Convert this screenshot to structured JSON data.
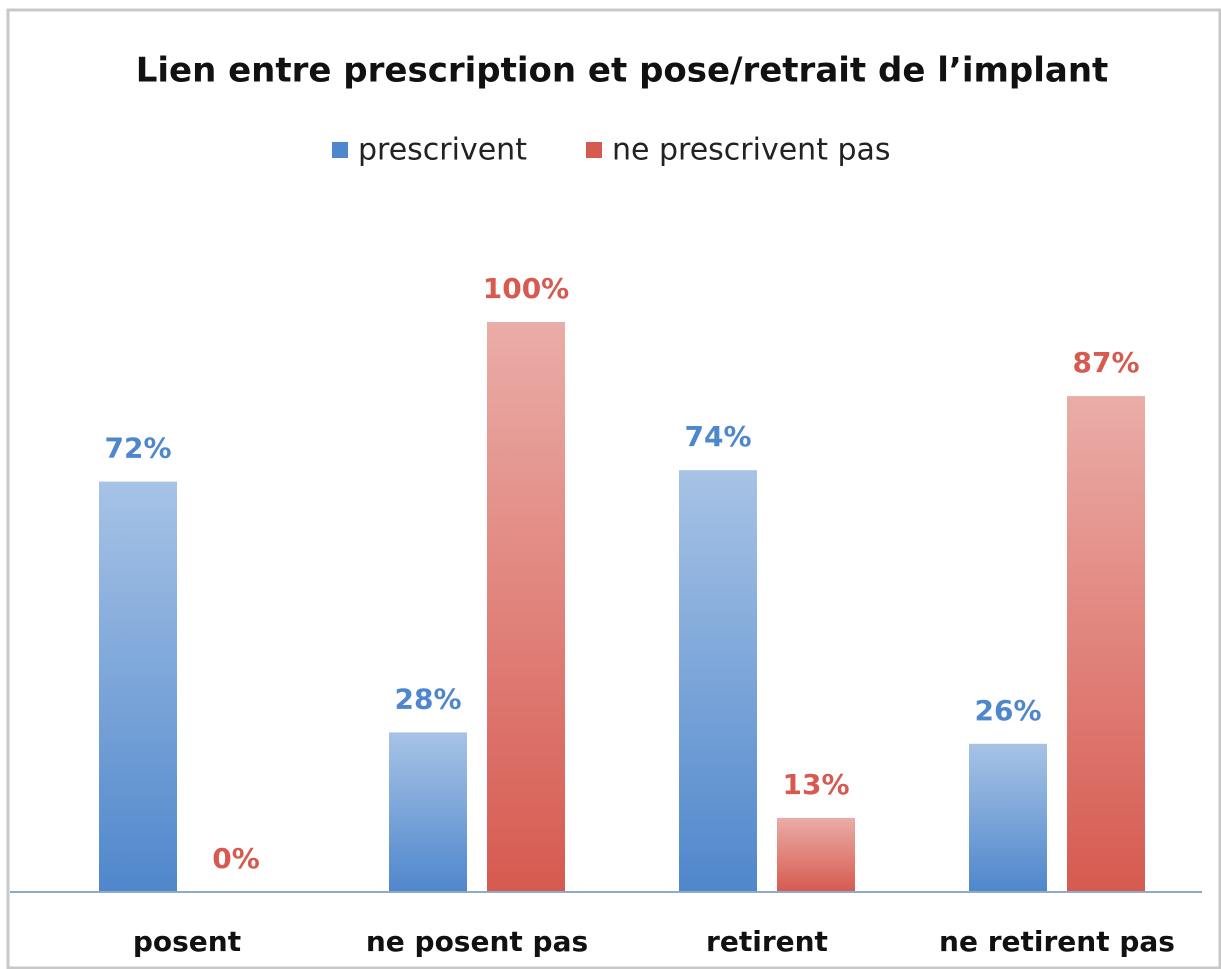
{
  "chart_data": {
    "type": "bar",
    "title": "Lien entre prescription et pose/retrait de l’implant",
    "categories": [
      "posent",
      "ne posent pas",
      "retirent",
      "ne retirent pas"
    ],
    "series": [
      {
        "name": "prescrivent",
        "color": "#4f87cc",
        "values": [
          72,
          28,
          74,
          26
        ],
        "value_labels": [
          "72%",
          "28%",
          "74%",
          "26%"
        ]
      },
      {
        "name": "ne prescrivent pas",
        "color": "#d65a50",
        "values": [
          0,
          100,
          13,
          87
        ],
        "value_labels": [
          "0%",
          "100%",
          "13%",
          "87%"
        ]
      }
    ],
    "ylim": [
      0,
      100
    ],
    "legend": "top"
  }
}
